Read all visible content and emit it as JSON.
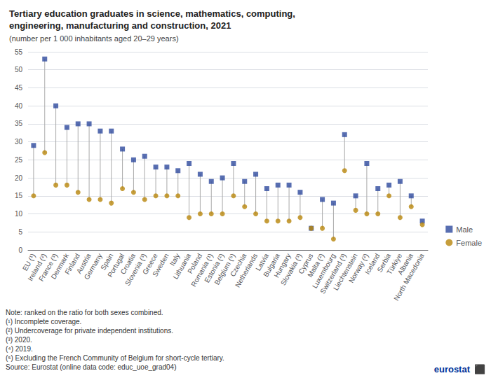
{
  "chart_data": {
    "type": "scatter",
    "title": "Tertiary education graduates in science, mathematics, computing,\nengineering, manufacturing and construction, 2021",
    "subtitle": "(number per 1 000 inhabitants aged 20–29 years)",
    "categories": [
      "EU (¹)",
      "Ireland (²)",
      "France (³)",
      "Denmark",
      "Finland",
      "Austria",
      "Germany",
      "Spain",
      "Portugal",
      "Croatia",
      "Slovenia (³)",
      "Greece",
      "Sweden",
      "Italy",
      "Lithuania",
      "Poland",
      "Romania (¹)",
      "Estonia (²)",
      "Belgium (⁵)",
      "Czechia",
      "Netherlands",
      "Latvia",
      "Bulgaria",
      "Hungary",
      "Slovakia (³)",
      "Cyprus",
      "Malta (²)",
      "Luxembourg",
      "Switzerland (³)",
      "Liechtenstein",
      "Norway (²)",
      "Iceland",
      "Serbia",
      "Türkiye",
      "Albania",
      "North Macedonia"
    ],
    "series": [
      {
        "name": "Male",
        "color": "#2e4a9e",
        "marker": "square",
        "values": [
          29,
          53,
          40,
          34,
          35,
          35,
          33,
          33,
          28,
          25,
          26,
          23,
          23,
          22,
          24,
          21,
          19,
          20,
          24,
          19,
          21,
          17,
          18,
          18,
          16,
          6,
          14,
          13,
          32,
          15,
          24,
          17,
          18,
          19,
          15,
          8
        ]
      },
      {
        "name": "Female",
        "color": "#b8860b",
        "marker": "circle",
        "values": [
          15,
          27,
          18,
          18,
          16,
          14,
          14,
          13,
          17,
          16,
          14,
          15,
          15,
          15,
          9,
          10,
          10,
          10,
          15,
          12,
          10,
          8,
          8,
          8,
          9,
          6,
          6,
          3,
          22,
          11,
          10,
          10,
          15,
          9,
          12,
          7
        ]
      }
    ],
    "ylim": [
      0,
      55
    ],
    "yticks": [
      0,
      5,
      10,
      15,
      20,
      25,
      30,
      35,
      40,
      45,
      50,
      55
    ],
    "grid": true,
    "legend": "lower right",
    "notes": [
      "Note: ranked on the ratio for both sexes combined.",
      "(¹) Incomplete coverage.",
      "(²) Undercoverage for private independent institutions.",
      "(³) 2020.",
      "(⁴) 2019.",
      "(⁵) Excluding the French Community of Belgium for short-cycle tertiary.",
      "Source: Eurostat (online data code: educ_uoe_grad04)"
    ],
    "annotations": [
      {
        "text": "eurostat",
        "color": "#003399"
      },
      {
        "text": "⬛",
        "color": "#003399"
      }
    ]
  }
}
